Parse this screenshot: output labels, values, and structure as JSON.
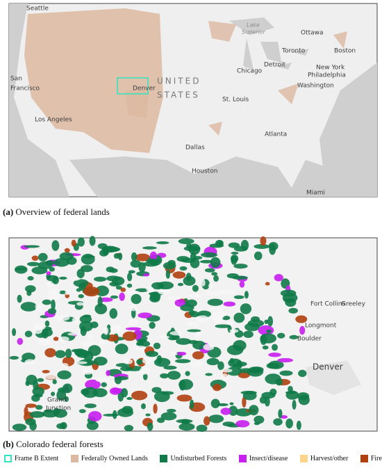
{
  "map_a": {
    "labels": [
      "Seattle",
      "Lake",
      "Superior",
      "Ottawa",
      "Toronto",
      "Boston",
      "New York",
      "Philadelphia",
      "Detroit",
      "Chicago",
      "San",
      "Francisco",
      "Denver",
      "UNITED",
      "STATES",
      "Washington",
      "St. Louis",
      "Los Angeles",
      "Atlanta",
      "Dallas",
      "Houston",
      "Miami"
    ]
  },
  "caption_a": {
    "label": "(a)",
    "text": "Overview of federal lands"
  },
  "map_b": {
    "labels": [
      "Fort Collins",
      "Greeley",
      "Longmont",
      "Boulder",
      "Denver",
      "Grand",
      "Junction"
    ]
  },
  "caption_b": {
    "label": "(b)",
    "text": "Colorado federal forests"
  },
  "legend": [
    {
      "label": "Frame B Extent",
      "color": "#2ee6c0",
      "outline": true
    },
    {
      "label": "Federally Owned Lands",
      "color": "#dcb8a0"
    },
    {
      "label": "Undisturbed Forests",
      "color": "#107a48"
    },
    {
      "label": "Insect/disease",
      "color": "#c81ef0"
    },
    {
      "label": "Harvest/other",
      "color": "#fcd48a"
    },
    {
      "label": "Fire",
      "color": "#b04010"
    }
  ]
}
